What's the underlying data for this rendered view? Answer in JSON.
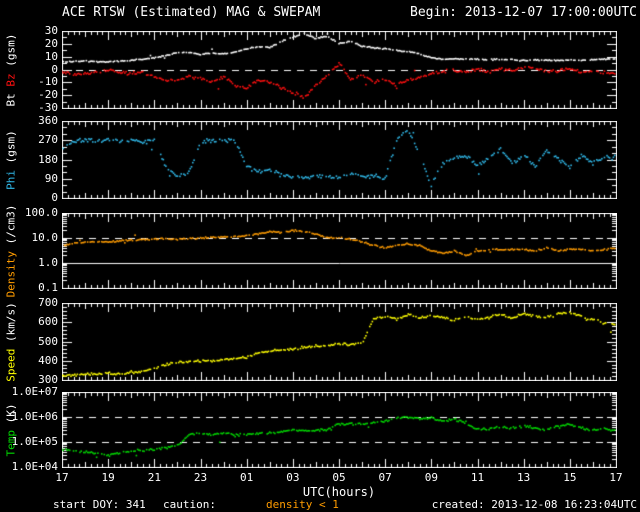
{
  "header": {
    "title": "ACE RTSW (Estimated) MAG & SWEPAM",
    "begin": "Begin: 2013-12-07 17:00:00UTC"
  },
  "footer": {
    "start_doy": "start DOY: 341",
    "caution_label": "caution:",
    "caution_value": "density < 1",
    "caution_color": "#ff9c00",
    "created": "created: 2013-12-08 16:23:04UTC"
  },
  "xaxis": {
    "label": "UTC(hours)",
    "tick_labels": [
      "17",
      "19",
      "21",
      "23",
      "01",
      "03",
      "05",
      "07",
      "09",
      "11",
      "13",
      "15",
      "17"
    ],
    "tick_step_hours": 2,
    "hours_span": 24
  },
  "colors": {
    "background": "#000000",
    "frame": "#ffffff",
    "reference_line": "#ffffff"
  },
  "chart_data": [
    {
      "id": "mag",
      "type": "scatter",
      "scale": "linear",
      "ylim": [
        -30,
        30
      ],
      "y_minor_step": 5,
      "yticks": [
        {
          "label": "30",
          "value": 30
        },
        {
          "label": "20",
          "value": 20
        },
        {
          "label": "10",
          "value": 10
        },
        {
          "label": "0",
          "value": 0
        },
        {
          "label": "-10",
          "value": -10
        },
        {
          "label": "-20",
          "value": -20
        },
        {
          "label": "-30",
          "value": -30
        }
      ],
      "ylabel_parts": [
        {
          "text": "Bt ",
          "color": "#ffffff"
        },
        {
          "text": "Bz",
          "color": "#ff1010"
        },
        {
          "text": " (gsm)",
          "color": "#ffffff"
        }
      ],
      "ref_lines": [
        {
          "value": 0,
          "dashed": true
        }
      ],
      "x_start": 0,
      "x_step": 0.5,
      "series": [
        {
          "name": "Bt",
          "color": "#ffffff",
          "spread": 0.7,
          "values": [
            6,
            6,
            6.5,
            6,
            6,
            6.5,
            7,
            8,
            9,
            11,
            13,
            13,
            12,
            13,
            12,
            14,
            16,
            18,
            17,
            22,
            25,
            28,
            24,
            26,
            20,
            22,
            18,
            17,
            16,
            15,
            14,
            12,
            9,
            8,
            8,
            8,
            8,
            7.5,
            8,
            7.5,
            7,
            7.5,
            7,
            7,
            7.5,
            7,
            7.5,
            8,
            8
          ]
        },
        {
          "name": "Bz",
          "color": "#ff1010",
          "spread": 1.8,
          "values": [
            -2,
            -4,
            -3,
            -2,
            -1,
            -2,
            -3,
            -2,
            -6,
            -9,
            -8,
            -5,
            -7,
            -10,
            -6,
            -12,
            -15,
            -8,
            -10,
            -14,
            -18,
            -22,
            -12,
            -5,
            5,
            -8,
            -4,
            -10,
            -8,
            -12,
            -8,
            -6,
            -3,
            -2,
            -1,
            -2,
            0,
            -2,
            1,
            -1,
            2,
            1,
            -2,
            -1,
            1,
            -2,
            -1,
            -3,
            -3
          ]
        }
      ]
    },
    {
      "id": "phi",
      "type": "scatter",
      "scale": "linear",
      "ylim": [
        0,
        360
      ],
      "y_minor_step": 30,
      "yticks": [
        {
          "label": "360",
          "value": 360
        },
        {
          "label": "270",
          "value": 270
        },
        {
          "label": "180",
          "value": 180
        },
        {
          "label": "90",
          "value": 90
        },
        {
          "label": "0",
          "value": 0
        }
      ],
      "ylabel_parts": [
        {
          "text": "Phi",
          "color": "#30b8e8"
        },
        {
          "text": " (gsm)",
          "color": "#ffffff"
        }
      ],
      "ref_lines": [],
      "x_start": 0,
      "x_step": 0.5,
      "series": [
        {
          "name": "Phi",
          "color": "#30b8e8",
          "spread": 14,
          "values": [
            230,
            265,
            270,
            268,
            272,
            265,
            270,
            262,
            270,
            150,
            100,
            120,
            260,
            270,
            268,
            265,
            150,
            120,
            135,
            110,
            100,
            95,
            105,
            100,
            95,
            110,
            100,
            105,
            90,
            270,
            320,
            200,
            60,
            160,
            185,
            200,
            150,
            190,
            230,
            160,
            200,
            150,
            220,
            180,
            140,
            200,
            160,
            190,
            190
          ]
        }
      ]
    },
    {
      "id": "density",
      "type": "scatter",
      "scale": "log",
      "ylim": [
        0.1,
        100
      ],
      "y_minor_step": null,
      "yticks": [
        {
          "label": "100.0",
          "value": 100
        },
        {
          "label": "10.0",
          "value": 10
        },
        {
          "label": "1.0",
          "value": 1
        },
        {
          "label": "0.1",
          "value": 0.1
        }
      ],
      "ylabel_parts": [
        {
          "text": "Density",
          "color": "#ff9c00"
        },
        {
          "text": " (/cm3)",
          "color": "#ffffff"
        }
      ],
      "ref_lines": [
        {
          "value": 10,
          "dashed": true
        },
        {
          "value": 1,
          "dashed": false
        }
      ],
      "x_start": 0,
      "x_step": 0.5,
      "series": [
        {
          "name": "Density",
          "color": "#ff9c00",
          "spread": 0.05,
          "values": [
            5,
            6,
            7,
            7,
            7,
            7.5,
            8,
            8.5,
            9,
            9,
            9,
            9.5,
            10,
            10.5,
            11,
            11.5,
            12,
            15,
            18,
            16,
            20,
            18,
            14,
            10,
            10,
            9,
            7,
            5,
            4,
            5,
            6,
            5,
            3,
            2.5,
            3,
            2,
            3,
            3.2,
            3.5,
            3.5,
            3.5,
            3,
            4,
            3,
            3.5,
            3.5,
            3,
            3.5,
            4
          ]
        }
      ]
    },
    {
      "id": "speed",
      "type": "scatter",
      "scale": "linear",
      "ylim": [
        300,
        700
      ],
      "y_minor_step": 20,
      "yticks": [
        {
          "label": "700",
          "value": 700
        },
        {
          "label": "600",
          "value": 600
        },
        {
          "label": "500",
          "value": 500
        },
        {
          "label": "400",
          "value": 400
        },
        {
          "label": "300",
          "value": 300
        }
      ],
      "ylabel_parts": [
        {
          "text": "Speed",
          "color": "#ffff00"
        },
        {
          "text": " (km/s)",
          "color": "#ffffff"
        }
      ],
      "ref_lines": [],
      "x_start": 0,
      "x_step": 0.5,
      "series": [
        {
          "name": "Speed",
          "color": "#ffff00",
          "spread": 9,
          "values": [
            320,
            325,
            330,
            333,
            335,
            330,
            340,
            345,
            360,
            380,
            390,
            395,
            400,
            400,
            405,
            410,
            420,
            440,
            450,
            455,
            460,
            470,
            475,
            480,
            490,
            485,
            490,
            620,
            630,
            615,
            640,
            620,
            635,
            625,
            610,
            630,
            615,
            625,
            640,
            620,
            645,
            630,
            625,
            645,
            650,
            630,
            615,
            595,
            585
          ]
        }
      ]
    },
    {
      "id": "temp",
      "type": "scatter",
      "scale": "log",
      "ylim": [
        10000,
        10000000
      ],
      "y_minor_step": null,
      "yticks": [
        {
          "label": "1.0E+07",
          "value": 10000000
        },
        {
          "label": "1.0E+06",
          "value": 1000000
        },
        {
          "label": "1.0E+05",
          "value": 100000
        },
        {
          "label": "1.0E+04",
          "value": 10000
        }
      ],
      "ylabel_parts": [
        {
          "text": "Temp",
          "color": "#00d800"
        },
        {
          "text": " (K)",
          "color": "#ffffff"
        }
      ],
      "ref_lines": [
        {
          "value": 1000000,
          "dashed": true
        },
        {
          "value": 100000,
          "dashed": true
        }
      ],
      "x_start": 0,
      "x_step": 0.5,
      "series": [
        {
          "name": "Temp",
          "color": "#00d800",
          "spread": 0.07,
          "values": [
            50000,
            45000,
            40000,
            35000,
            30000,
            38000,
            42000,
            45000,
            50000,
            60000,
            70000,
            200000,
            220000,
            200000,
            240000,
            180000,
            200000,
            220000,
            240000,
            260000,
            300000,
            280000,
            300000,
            320000,
            500000,
            550000,
            500000,
            600000,
            700000,
            900000,
            1000000,
            850000,
            900000,
            700000,
            800000,
            600000,
            300000,
            350000,
            400000,
            350000,
            450000,
            350000,
            300000,
            450000,
            500000,
            350000,
            300000,
            350000,
            280000
          ]
        }
      ]
    }
  ]
}
